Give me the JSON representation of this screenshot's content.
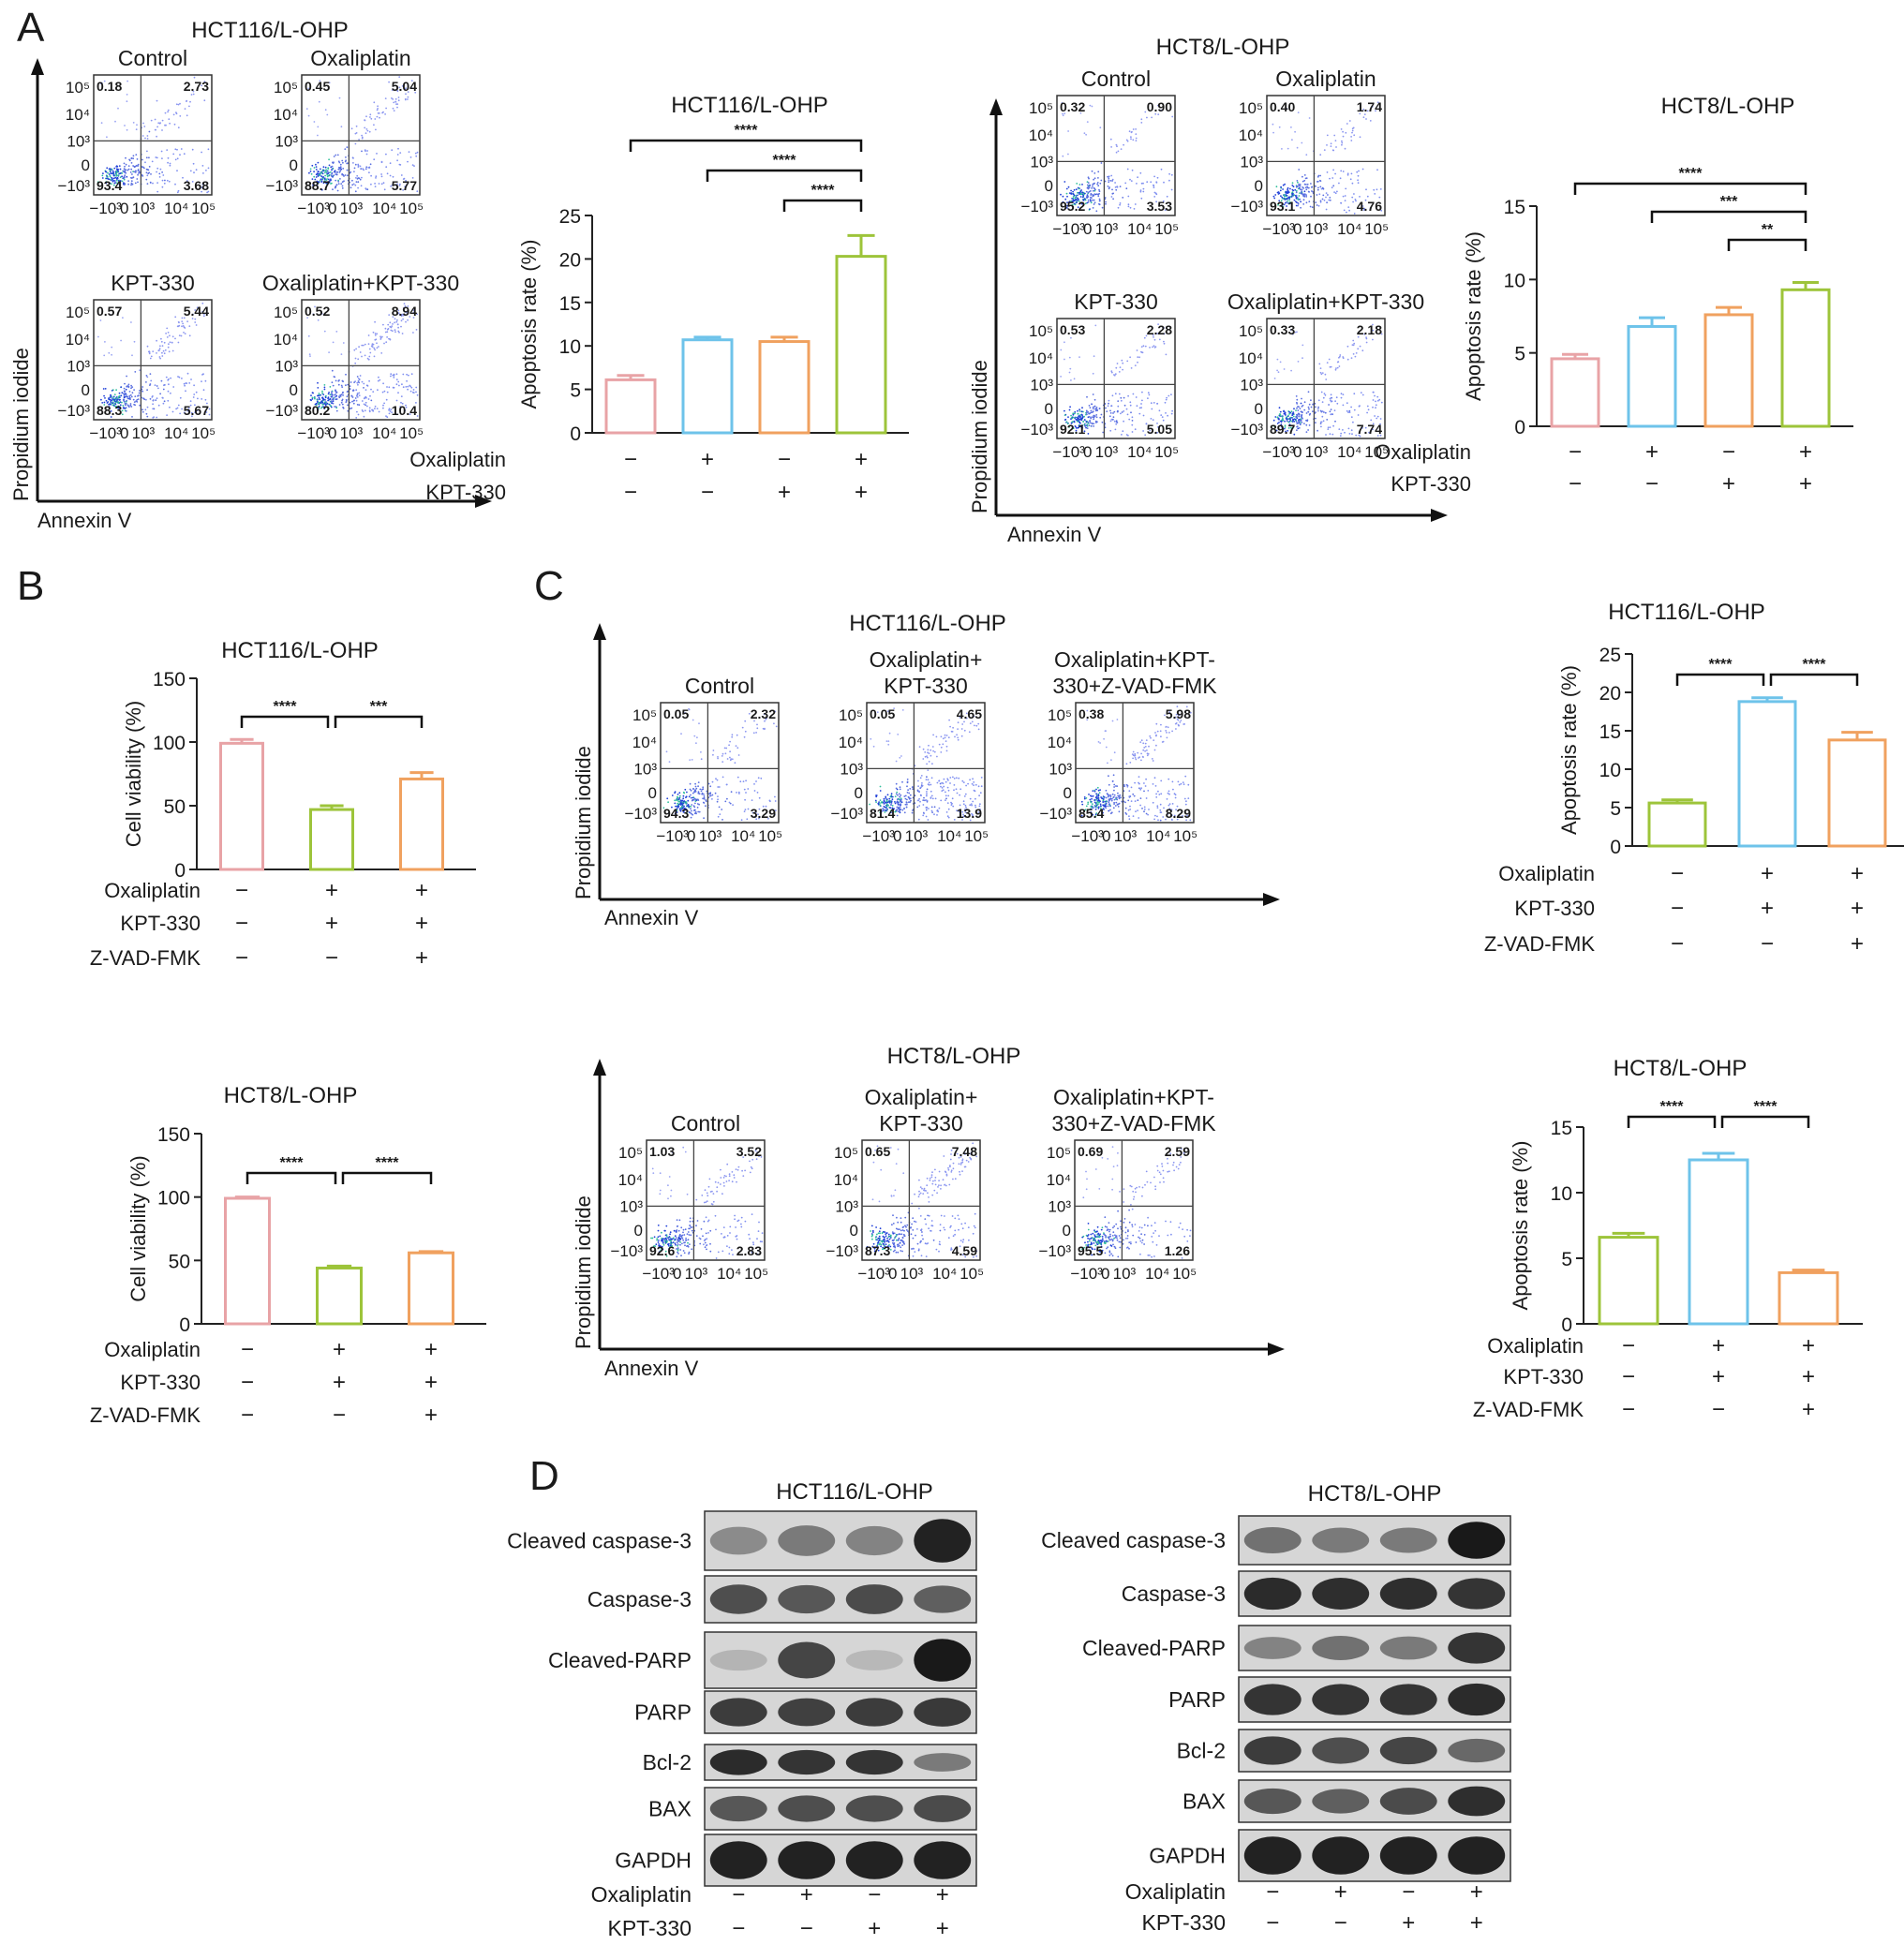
{
  "panel_labels": [
    "A",
    "B",
    "C",
    "D"
  ],
  "flow_axes": {
    "x_label": "Annexin V",
    "y_label": "Propidium iodide"
  },
  "flow_panels": [
    {
      "cell_line": "HCT116/L-OHP",
      "plots": [
        {
          "label": "Control",
          "q": [
            "0.18",
            "2.73",
            "93.4",
            "3.68"
          ]
        },
        {
          "label": "Oxaliplatin",
          "q": [
            "0.45",
            "5.04",
            "88.7",
            "5.77"
          ]
        },
        {
          "label": "KPT-330",
          "q": [
            "0.57",
            "5.44",
            "88.3",
            "5.67"
          ]
        },
        {
          "label": "Oxaliplatin+KPT-330",
          "q": [
            "0.52",
            "8.94",
            "80.2",
            "10.4"
          ]
        }
      ]
    },
    {
      "cell_line": "HCT8/L-OHP",
      "plots": [
        {
          "label": "Control",
          "q": [
            "0.32",
            "0.90",
            "95.2",
            "3.53"
          ]
        },
        {
          "label": "Oxaliplatin",
          "q": [
            "0.40",
            "1.74",
            "93.1",
            "4.76"
          ]
        },
        {
          "label": "KPT-330",
          "q": [
            "0.53",
            "2.28",
            "92.1",
            "5.05"
          ]
        },
        {
          "label": "Oxaliplatin+KPT-330",
          "q": [
            "0.33",
            "2.18",
            "89.7",
            "7.74"
          ]
        }
      ]
    },
    {
      "cell_line": "HCT116/L-OHP",
      "plots": [
        {
          "label": "Control",
          "q": [
            "0.05",
            "2.32",
            "94.3",
            "3.29"
          ]
        },
        {
          "label": "Oxaliplatin+ KPT-330",
          "q": [
            "0.05",
            "4.65",
            "81.4",
            "13.9"
          ]
        },
        {
          "label": "Oxaliplatin+KPT- 330+Z-VAD-FMK",
          "q": [
            "0.38",
            "5.98",
            "85.4",
            "8.29"
          ]
        }
      ]
    },
    {
      "cell_line": "HCT8/L-OHP",
      "plots": [
        {
          "label": "Control",
          "q": [
            "1.03",
            "3.52",
            "92.6",
            "2.83"
          ]
        },
        {
          "label": "Oxaliplatin+ KPT-330",
          "q": [
            "0.65",
            "7.48",
            "87.3",
            "4.59"
          ]
        },
        {
          "label": "Oxaliplatin+KPT- 330+Z-VAD-FMK",
          "q": [
            "0.69",
            "2.59",
            "95.5",
            "1.26"
          ]
        }
      ]
    }
  ],
  "flow_ticks": {
    "y": [
      "10⁵",
      "10⁴",
      "10³",
      "0",
      "−10³"
    ],
    "x": [
      "−10³",
      "0",
      "10³",
      "10⁴",
      "10⁵"
    ]
  },
  "chart_data": [
    {
      "type": "bar",
      "title": "HCT116/L-OHP",
      "ylabel": "Apoptosis rate (%)",
      "ylim": [
        0,
        25
      ],
      "yticks": [
        0,
        5,
        10,
        15,
        20,
        25
      ],
      "values": [
        6.1,
        10.7,
        10.5,
        20.3
      ],
      "errors": [
        0.5,
        0.3,
        0.5,
        2.4
      ],
      "colors": [
        "#e8a3a6",
        "#6ec3ea",
        "#f0a15f",
        "#9dc43a"
      ],
      "conditions": [
        {
          "name": "Oxaliplatin",
          "signs": [
            "−",
            "+",
            "−",
            "+"
          ]
        },
        {
          "name": "KPT-330",
          "signs": [
            "−",
            "−",
            "+",
            "+"
          ]
        }
      ],
      "comparisons": [
        {
          "from": 0,
          "to": 3,
          "stars": "****"
        },
        {
          "from": 1,
          "to": 3,
          "stars": "****"
        },
        {
          "from": 2,
          "to": 3,
          "stars": "****"
        }
      ]
    },
    {
      "type": "bar",
      "title": "HCT8/L-OHP",
      "ylabel": "Apoptosis rate (%)",
      "ylim": [
        0,
        15
      ],
      "yticks": [
        0,
        5,
        10,
        15
      ],
      "values": [
        4.6,
        6.8,
        7.6,
        9.3
      ],
      "errors": [
        0.3,
        0.6,
        0.5,
        0.5
      ],
      "colors": [
        "#e8a3a6",
        "#6ec3ea",
        "#f0a15f",
        "#9dc43a"
      ],
      "conditions": [
        {
          "name": "Oxaliplatin",
          "signs": [
            "−",
            "+",
            "−",
            "+"
          ]
        },
        {
          "name": "KPT-330",
          "signs": [
            "−",
            "−",
            "+",
            "+"
          ]
        }
      ],
      "comparisons": [
        {
          "from": 0,
          "to": 3,
          "stars": "****"
        },
        {
          "from": 1,
          "to": 3,
          "stars": "***"
        },
        {
          "from": 2,
          "to": 3,
          "stars": "**"
        }
      ]
    },
    {
      "type": "bar",
      "title": "HCT116/L-OHP",
      "ylabel": "Cell viability (%)",
      "ylim": [
        0,
        150
      ],
      "yticks": [
        0,
        50,
        100,
        150
      ],
      "values": [
        99,
        47,
        71
      ],
      "errors": [
        3,
        3,
        5
      ],
      "colors": [
        "#e8a3a6",
        "#9dc43a",
        "#f0a15f"
      ],
      "conditions": [
        {
          "name": "Oxaliplatin",
          "signs": [
            "−",
            "+",
            "+"
          ]
        },
        {
          "name": "KPT-330",
          "signs": [
            "−",
            "+",
            "+"
          ]
        },
        {
          "name": "Z-VAD-FMK",
          "signs": [
            "−",
            "−",
            "+"
          ]
        }
      ],
      "comparisons": [
        {
          "from": 0,
          "to": 1,
          "stars": "****"
        },
        {
          "from": 1,
          "to": 2,
          "stars": "***"
        }
      ]
    },
    {
      "type": "bar",
      "title": "HCT8/L-OHP",
      "ylabel": "Cell viability (%)",
      "ylim": [
        0,
        150
      ],
      "yticks": [
        0,
        50,
        100,
        150
      ],
      "values": [
        99,
        44,
        56
      ],
      "errors": [
        1,
        1.5,
        1
      ],
      "colors": [
        "#e8a3a6",
        "#9dc43a",
        "#f0a15f"
      ],
      "conditions": [
        {
          "name": "Oxaliplatin",
          "signs": [
            "−",
            "+",
            "+"
          ]
        },
        {
          "name": "KPT-330",
          "signs": [
            "−",
            "+",
            "+"
          ]
        },
        {
          "name": "Z-VAD-FMK",
          "signs": [
            "−",
            "−",
            "+"
          ]
        }
      ],
      "comparisons": [
        {
          "from": 0,
          "to": 1,
          "stars": "****"
        },
        {
          "from": 1,
          "to": 2,
          "stars": "****"
        }
      ]
    },
    {
      "type": "bar",
      "title": "HCT116/L-OHP",
      "ylabel": "Apoptosis rate (%)",
      "ylim": [
        0,
        25
      ],
      "yticks": [
        0,
        5,
        10,
        15,
        20,
        25
      ],
      "values": [
        5.6,
        18.8,
        13.8
      ],
      "errors": [
        0.4,
        0.5,
        1.0
      ],
      "colors": [
        "#9dc43a",
        "#6ec3ea",
        "#f0a15f"
      ],
      "conditions": [
        {
          "name": "Oxaliplatin",
          "signs": [
            "−",
            "+",
            "+"
          ]
        },
        {
          "name": "KPT-330",
          "signs": [
            "−",
            "+",
            "+"
          ]
        },
        {
          "name": "Z-VAD-FMK",
          "signs": [
            "−",
            "−",
            "+"
          ]
        }
      ],
      "comparisons": [
        {
          "from": 0,
          "to": 1,
          "stars": "****"
        },
        {
          "from": 1,
          "to": 2,
          "stars": "****"
        }
      ]
    },
    {
      "type": "bar",
      "title": "HCT8/L-OHP",
      "ylabel": "Apoptosis rate (%)",
      "ylim": [
        0,
        15
      ],
      "yticks": [
        0,
        5,
        10,
        15
      ],
      "values": [
        6.6,
        12.5,
        3.9
      ],
      "errors": [
        0.3,
        0.5,
        0.2
      ],
      "colors": [
        "#9dc43a",
        "#6ec3ea",
        "#f0a15f"
      ],
      "conditions": [
        {
          "name": "Oxaliplatin",
          "signs": [
            "−",
            "+",
            "+"
          ]
        },
        {
          "name": "KPT-330",
          "signs": [
            "−",
            "+",
            "+"
          ]
        },
        {
          "name": "Z-VAD-FMK",
          "signs": [
            "−",
            "−",
            "+"
          ]
        }
      ],
      "comparisons": [
        {
          "from": 0,
          "to": 1,
          "stars": "****"
        },
        {
          "from": 1,
          "to": 2,
          "stars": "****"
        }
      ]
    }
  ],
  "western_blots": [
    {
      "cell_line": "HCT116/L-OHP",
      "bands": [
        "Cleaved caspase-3",
        "Caspase-3",
        "Cleaved-PARP",
        "PARP",
        "Bcl-2",
        "BAX",
        "GAPDH"
      ],
      "intensity": [
        [
          0.35,
          0.45,
          0.4,
          0.95
        ],
        [
          0.7,
          0.65,
          0.72,
          0.6
        ],
        [
          0.12,
          0.75,
          0.1,
          1.0
        ],
        [
          0.8,
          0.78,
          0.8,
          0.82
        ],
        [
          0.9,
          0.85,
          0.85,
          0.45
        ],
        [
          0.65,
          0.7,
          0.7,
          0.72
        ],
        [
          0.95,
          0.95,
          0.95,
          0.95
        ]
      ],
      "conditions": [
        {
          "name": "Oxaliplatin",
          "signs": [
            "−",
            "+",
            "−",
            "+"
          ]
        },
        {
          "name": "KPT-330",
          "signs": [
            "−",
            "−",
            "+",
            "+"
          ]
        }
      ]
    },
    {
      "cell_line": "HCT8/L-OHP",
      "bands": [
        "Cleaved caspase-3",
        "Caspase-3",
        "Cleaved-PARP",
        "PARP",
        "Bcl-2",
        "BAX",
        "GAPDH"
      ],
      "intensity": [
        [
          0.5,
          0.45,
          0.45,
          1.0
        ],
        [
          0.9,
          0.88,
          0.88,
          0.85
        ],
        [
          0.4,
          0.5,
          0.45,
          0.85
        ],
        [
          0.85,
          0.85,
          0.85,
          0.9
        ],
        [
          0.8,
          0.7,
          0.75,
          0.55
        ],
        [
          0.65,
          0.6,
          0.72,
          0.88
        ],
        [
          0.95,
          0.95,
          0.95,
          0.95
        ]
      ],
      "conditions": [
        {
          "name": "Oxaliplatin",
          "signs": [
            "−",
            "+",
            "−",
            "+"
          ]
        },
        {
          "name": "KPT-330",
          "signs": [
            "−",
            "−",
            "+",
            "+"
          ]
        }
      ]
    }
  ]
}
